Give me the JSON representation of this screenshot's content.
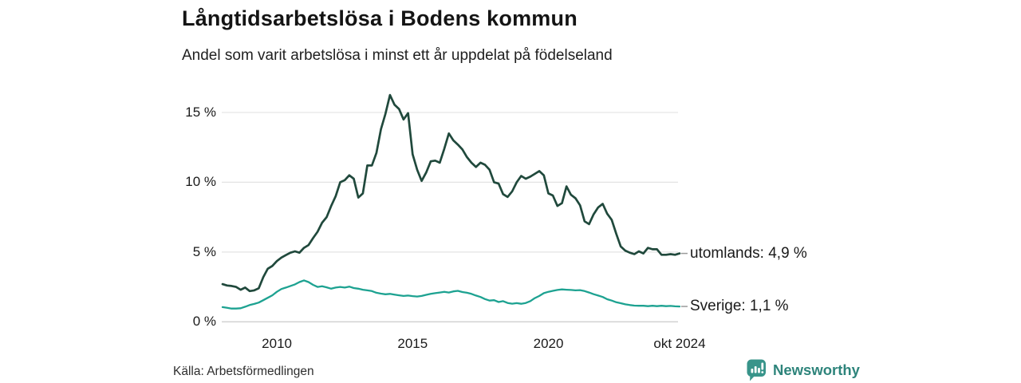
{
  "chart_data": {
    "type": "line",
    "title": "Långtidsarbetslösa i Bodens kommun",
    "subtitle": "Andel som varit arbetslösa i minst ett år uppdelat på födelseland",
    "x_domain": [
      2008.0,
      2024.83
    ],
    "ylim": [
      0,
      16.5
    ],
    "grid": true,
    "legend_position": "end-of-line",
    "x_ticks": [
      {
        "label": "2010",
        "year": 2010
      },
      {
        "label": "2015",
        "year": 2015
      },
      {
        "label": "2020",
        "year": 2020
      },
      {
        "label": "okt 2024",
        "year": 2024.83
      }
    ],
    "y_ticks": [
      {
        "label": "0 %",
        "value": 0
      },
      {
        "label": "5 %",
        "value": 5
      },
      {
        "label": "10 %",
        "value": 10
      },
      {
        "label": "15 %",
        "value": 15
      }
    ],
    "series": [
      {
        "name": "utomlands",
        "end_label": "utomlands: 4,9 %",
        "end_value": 4.9,
        "color": "#20493c",
        "values": [
          2.7,
          2.6,
          2.57,
          2.5,
          2.3,
          2.45,
          2.2,
          2.25,
          2.4,
          3.2,
          3.8,
          4.0,
          4.35,
          4.6,
          4.78,
          4.95,
          5.05,
          4.95,
          5.3,
          5.5,
          6.0,
          6.45,
          7.1,
          7.5,
          8.3,
          9.0,
          10.0,
          10.15,
          10.5,
          10.25,
          8.9,
          9.2,
          11.2,
          11.2,
          12.1,
          13.8,
          14.9,
          16.25,
          15.55,
          15.25,
          14.5,
          14.95,
          12.0,
          10.9,
          10.1,
          10.7,
          11.5,
          11.55,
          11.4,
          12.4,
          13.5,
          13.0,
          12.7,
          12.35,
          11.8,
          11.4,
          11.1,
          11.4,
          11.25,
          10.9,
          10.0,
          9.9,
          9.15,
          8.95,
          9.35,
          10.0,
          10.45,
          10.25,
          10.4,
          10.6,
          10.8,
          10.5,
          9.2,
          9.05,
          8.3,
          8.5,
          9.7,
          9.1,
          8.85,
          8.35,
          7.2,
          7.0,
          7.7,
          8.2,
          8.45,
          7.75,
          7.3,
          6.3,
          5.4,
          5.1,
          4.95,
          4.85,
          5.05,
          4.9,
          5.3,
          5.2,
          5.2,
          4.8,
          4.8,
          4.85,
          4.8,
          4.9
        ]
      },
      {
        "name": "Sverige",
        "end_label": "Sverige: 1,1 %",
        "end_value": 1.1,
        "color": "#1da291",
        "values": [
          1.05,
          1.0,
          0.95,
          0.95,
          0.97,
          1.08,
          1.2,
          1.28,
          1.38,
          1.55,
          1.72,
          1.9,
          2.15,
          2.35,
          2.45,
          2.57,
          2.68,
          2.85,
          2.97,
          2.85,
          2.65,
          2.5,
          2.55,
          2.47,
          2.37,
          2.45,
          2.5,
          2.45,
          2.52,
          2.42,
          2.37,
          2.3,
          2.25,
          2.2,
          2.08,
          2.02,
          1.97,
          2.0,
          1.95,
          1.9,
          1.85,
          1.88,
          1.84,
          1.81,
          1.85,
          1.93,
          2.0,
          2.05,
          2.1,
          2.15,
          2.1,
          2.18,
          2.22,
          2.13,
          2.08,
          2.0,
          1.88,
          1.78,
          1.63,
          1.52,
          1.55,
          1.42,
          1.48,
          1.35,
          1.3,
          1.34,
          1.29,
          1.35,
          1.48,
          1.7,
          1.85,
          2.05,
          2.15,
          2.22,
          2.28,
          2.32,
          2.3,
          2.28,
          2.25,
          2.27,
          2.2,
          2.1,
          1.98,
          1.88,
          1.78,
          1.62,
          1.52,
          1.4,
          1.33,
          1.25,
          1.2,
          1.16,
          1.15,
          1.15,
          1.12,
          1.15,
          1.12,
          1.15,
          1.12,
          1.14,
          1.11,
          1.1
        ]
      }
    ],
    "colors": {
      "grid": "#e3e3e3",
      "zero_line": "#d4d4d4",
      "label_dash": "#9a9a9a",
      "text": "#1a1a1a"
    }
  },
  "footer": {
    "source": "Källa: Arbetsförmedlingen",
    "brand": "Newsworthy",
    "brand_color": "#2e847b",
    "brand_icon_color": "#38948a"
  }
}
